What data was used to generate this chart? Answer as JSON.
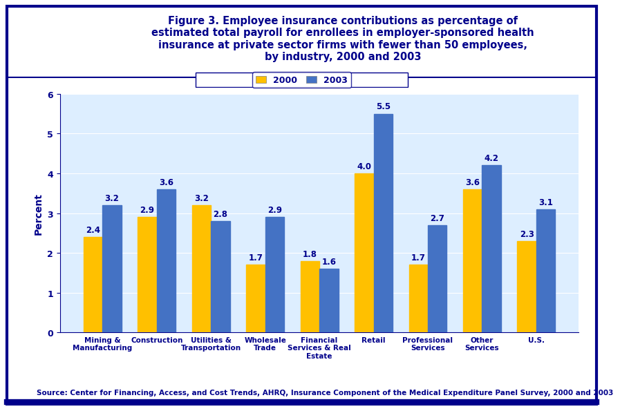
{
  "title": "Figure 3. Employee insurance contributions as percentage of\nestimated total payroll for enrollees in employer-sponsored health\ninsurance at private sector firms with fewer than 50 employees,\nby industry, 2000 and 2003",
  "categories": [
    "Mining &\nManufacturing",
    "Construction",
    "Utilities &\nTransportation",
    "Wholesale\nTrade",
    "Financial\nServices & Real\nEstate",
    "Retail",
    "Professional\nServices",
    "Other\nServices",
    "U.S."
  ],
  "values_2000": [
    2.4,
    2.9,
    3.2,
    1.7,
    1.8,
    4.0,
    1.7,
    3.6,
    2.3
  ],
  "values_2003": [
    3.2,
    3.6,
    2.8,
    2.9,
    1.6,
    5.5,
    2.7,
    4.2,
    3.1
  ],
  "color_2000": "#FFC000",
  "color_2003": "#4472C4",
  "ylabel": "Percent",
  "ylim": [
    0,
    6
  ],
  "yticks": [
    0,
    1,
    2,
    3,
    4,
    5,
    6
  ],
  "legend_labels": [
    "2000",
    "2003"
  ],
  "source_text": "Source: Center for Financing, Access, and Cost Trends, AHRQ, Insurance Component of the Medical Expenditure Panel Survey, 2000 and 2003",
  "title_color": "#00008B",
  "axis_label_color": "#00008B",
  "tick_color": "#00008B",
  "bar_label_color": "#00008B",
  "source_color": "#00008B",
  "background_color": "#FFFFFF",
  "header_background": "#FFFFFF",
  "border_color": "#00008B",
  "grid_color": "#FFFFFF",
  "plot_bg_color": "#DDEEFF"
}
